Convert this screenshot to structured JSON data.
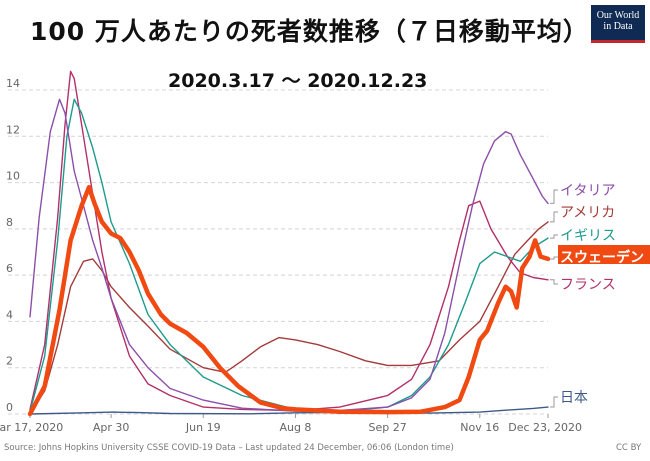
{
  "header": {
    "title": "100 万人あたりの死者数推移（７日移動平均）",
    "subtitle": "2020.3.17 ～ 2020.12.23"
  },
  "logo": {
    "line1": "Our World",
    "line2": "in Data"
  },
  "footer": {
    "source": "Source: Johns Hopkins University CSSE COVID-19 Data – Last updated 24 December, 06:06 (London time)",
    "license": "CC BY"
  },
  "colors": {
    "italy": "#8c4fa9",
    "usa": "#a33b3b",
    "uk": "#1d9b8d",
    "sweden": "#f04a12",
    "france": "#b3306a",
    "japan": "#3d5a87",
    "grid": "#d4d4d4",
    "axis_text": "#666666"
  },
  "chart_data": {
    "type": "line",
    "title": "100 万人あたりの死者数推移（７日移動平均）",
    "subtitle": "2020.3.17 ～ 2020.12.23",
    "xlabel": "",
    "ylabel": "",
    "x_range": [
      "2020-03-17",
      "2020-12-23"
    ],
    "ylim": [
      0,
      14
    ],
    "y_ticks": [
      0,
      2,
      4,
      6,
      8,
      10,
      12,
      14
    ],
    "x_ticks": [
      {
        "date": "2020-03-17",
        "label": "Mar 17, 2020"
      },
      {
        "date": "2020-04-30",
        "label": "Apr 30"
      },
      {
        "date": "2020-06-19",
        "label": "Jun 19"
      },
      {
        "date": "2020-08-08",
        "label": "Aug 8"
      },
      {
        "date": "2020-09-27",
        "label": "Sep 27"
      },
      {
        "date": "2020-11-16",
        "label": "Nov 16"
      },
      {
        "date": "2020-12-23",
        "label": "Dec 23, 2020"
      }
    ],
    "grid": true,
    "legend": "right, labels at line ends",
    "series": [
      {
        "key": "italy",
        "name": "イタリア",
        "points": [
          [
            "2020-03-17",
            4.2
          ],
          [
            "2020-03-22",
            8.5
          ],
          [
            "2020-03-28",
            12.2
          ],
          [
            "2020-04-02",
            13.6
          ],
          [
            "2020-04-05",
            13.0
          ],
          [
            "2020-04-10",
            10.5
          ],
          [
            "2020-04-15",
            9.0
          ],
          [
            "2020-04-20",
            7.5
          ],
          [
            "2020-04-25",
            6.3
          ],
          [
            "2020-04-30",
            5.0
          ],
          [
            "2020-05-10",
            3.0
          ],
          [
            "2020-05-20",
            2.0
          ],
          [
            "2020-06-01",
            1.1
          ],
          [
            "2020-06-19",
            0.6
          ],
          [
            "2020-07-10",
            0.25
          ],
          [
            "2020-08-08",
            0.12
          ],
          [
            "2020-09-01",
            0.15
          ],
          [
            "2020-09-27",
            0.3
          ],
          [
            "2020-10-10",
            0.7
          ],
          [
            "2020-10-20",
            1.5
          ],
          [
            "2020-10-28",
            3.5
          ],
          [
            "2020-11-05",
            6.5
          ],
          [
            "2020-11-12",
            9.0
          ],
          [
            "2020-11-18",
            10.8
          ],
          [
            "2020-11-24",
            11.8
          ],
          [
            "2020-11-30",
            12.2
          ],
          [
            "2020-12-03",
            12.1
          ],
          [
            "2020-12-08",
            11.2
          ],
          [
            "2020-12-14",
            10.3
          ],
          [
            "2020-12-20",
            9.4
          ],
          [
            "2020-12-23",
            9.1
          ]
        ]
      },
      {
        "key": "usa",
        "name": "アメリカ",
        "points": [
          [
            "2020-03-17",
            0.0
          ],
          [
            "2020-03-25",
            1.0
          ],
          [
            "2020-04-01",
            3.0
          ],
          [
            "2020-04-08",
            5.5
          ],
          [
            "2020-04-15",
            6.6
          ],
          [
            "2020-04-20",
            6.7
          ],
          [
            "2020-04-25",
            6.2
          ],
          [
            "2020-04-30",
            5.5
          ],
          [
            "2020-05-10",
            4.6
          ],
          [
            "2020-05-20",
            3.8
          ],
          [
            "2020-06-01",
            2.8
          ],
          [
            "2020-06-19",
            2.0
          ],
          [
            "2020-07-01",
            1.8
          ],
          [
            "2020-07-10",
            2.3
          ],
          [
            "2020-07-20",
            2.9
          ],
          [
            "2020-07-30",
            3.3
          ],
          [
            "2020-08-08",
            3.2
          ],
          [
            "2020-08-20",
            3.0
          ],
          [
            "2020-09-01",
            2.7
          ],
          [
            "2020-09-15",
            2.3
          ],
          [
            "2020-09-27",
            2.1
          ],
          [
            "2020-10-10",
            2.1
          ],
          [
            "2020-10-25",
            2.3
          ],
          [
            "2020-11-05",
            3.2
          ],
          [
            "2020-11-16",
            4.0
          ],
          [
            "2020-11-26",
            5.5
          ],
          [
            "2020-12-05",
            6.9
          ],
          [
            "2020-12-12",
            7.5
          ],
          [
            "2020-12-18",
            8.0
          ],
          [
            "2020-12-23",
            8.3
          ]
        ]
      },
      {
        "key": "uk",
        "name": "イギリス",
        "points": [
          [
            "2020-03-17",
            0.1
          ],
          [
            "2020-03-25",
            2.5
          ],
          [
            "2020-04-01",
            7.5
          ],
          [
            "2020-04-06",
            12.0
          ],
          [
            "2020-04-10",
            13.6
          ],
          [
            "2020-04-14",
            13.0
          ],
          [
            "2020-04-20",
            11.5
          ],
          [
            "2020-04-25",
            10.0
          ],
          [
            "2020-04-30",
            8.3
          ],
          [
            "2020-05-10",
            6.5
          ],
          [
            "2020-05-20",
            4.3
          ],
          [
            "2020-06-01",
            3.0
          ],
          [
            "2020-06-19",
            1.6
          ],
          [
            "2020-07-10",
            0.8
          ],
          [
            "2020-08-08",
            0.2
          ],
          [
            "2020-09-01",
            0.1
          ],
          [
            "2020-09-27",
            0.3
          ],
          [
            "2020-10-10",
            0.8
          ],
          [
            "2020-10-20",
            1.6
          ],
          [
            "2020-10-30",
            3.0
          ],
          [
            "2020-11-08",
            4.8
          ],
          [
            "2020-11-16",
            6.5
          ],
          [
            "2020-11-24",
            7.0
          ],
          [
            "2020-12-01",
            6.8
          ],
          [
            "2020-12-08",
            6.6
          ],
          [
            "2020-12-15",
            7.2
          ],
          [
            "2020-12-23",
            7.6
          ]
        ]
      },
      {
        "key": "sweden",
        "name": "スウェーデン",
        "points": [
          [
            "2020-03-17",
            0.0
          ],
          [
            "2020-03-25",
            1.2
          ],
          [
            "2020-04-02",
            4.5
          ],
          [
            "2020-04-08",
            7.5
          ],
          [
            "2020-04-14",
            9.0
          ],
          [
            "2020-04-18",
            9.8
          ],
          [
            "2020-04-21",
            9.1
          ],
          [
            "2020-04-25",
            8.3
          ],
          [
            "2020-04-30",
            7.8
          ],
          [
            "2020-05-05",
            7.6
          ],
          [
            "2020-05-10",
            7.0
          ],
          [
            "2020-05-15",
            6.2
          ],
          [
            "2020-05-20",
            5.2
          ],
          [
            "2020-05-27",
            4.3
          ],
          [
            "2020-06-01",
            3.9
          ],
          [
            "2020-06-10",
            3.5
          ],
          [
            "2020-06-19",
            2.9
          ],
          [
            "2020-06-28",
            2.0
          ],
          [
            "2020-07-08",
            1.2
          ],
          [
            "2020-07-20",
            0.5
          ],
          [
            "2020-08-01",
            0.25
          ],
          [
            "2020-08-08",
            0.2
          ],
          [
            "2020-08-20",
            0.15
          ],
          [
            "2020-09-01",
            0.1
          ],
          [
            "2020-09-27",
            0.08
          ],
          [
            "2020-10-15",
            0.1
          ],
          [
            "2020-10-28",
            0.3
          ],
          [
            "2020-11-05",
            0.6
          ],
          [
            "2020-11-10",
            1.6
          ],
          [
            "2020-11-16",
            3.2
          ],
          [
            "2020-11-20",
            3.6
          ],
          [
            "2020-11-26",
            4.8
          ],
          [
            "2020-11-30",
            5.5
          ],
          [
            "2020-12-03",
            5.3
          ],
          [
            "2020-12-06",
            4.6
          ],
          [
            "2020-12-09",
            6.3
          ],
          [
            "2020-12-13",
            6.8
          ],
          [
            "2020-12-16",
            7.5
          ],
          [
            "2020-12-19",
            6.8
          ],
          [
            "2020-12-23",
            6.7
          ]
        ]
      },
      {
        "key": "france",
        "name": "フランス",
        "points": [
          [
            "2020-03-17",
            0.2
          ],
          [
            "2020-03-25",
            3.0
          ],
          [
            "2020-04-01",
            8.5
          ],
          [
            "2020-04-05",
            12.5
          ],
          [
            "2020-04-08",
            14.8
          ],
          [
            "2020-04-10",
            14.5
          ],
          [
            "2020-04-15",
            12.0
          ],
          [
            "2020-04-20",
            9.5
          ],
          [
            "2020-04-25",
            7.0
          ],
          [
            "2020-04-30",
            5.0
          ],
          [
            "2020-05-10",
            2.5
          ],
          [
            "2020-05-20",
            1.3
          ],
          [
            "2020-06-01",
            0.8
          ],
          [
            "2020-06-19",
            0.3
          ],
          [
            "2020-07-10",
            0.2
          ],
          [
            "2020-08-08",
            0.15
          ],
          [
            "2020-09-01",
            0.3
          ],
          [
            "2020-09-27",
            0.8
          ],
          [
            "2020-10-10",
            1.5
          ],
          [
            "2020-10-20",
            3.0
          ],
          [
            "2020-10-30",
            5.5
          ],
          [
            "2020-11-05",
            7.5
          ],
          [
            "2020-11-10",
            9.0
          ],
          [
            "2020-11-16",
            9.2
          ],
          [
            "2020-11-22",
            8.0
          ],
          [
            "2020-12-01",
            6.8
          ],
          [
            "2020-12-08",
            6.1
          ],
          [
            "2020-12-15",
            5.9
          ],
          [
            "2020-12-23",
            5.8
          ]
        ]
      },
      {
        "key": "japan",
        "name": "日本",
        "points": [
          [
            "2020-03-17",
            0.0
          ],
          [
            "2020-04-15",
            0.05
          ],
          [
            "2020-05-01",
            0.08
          ],
          [
            "2020-05-15",
            0.06
          ],
          [
            "2020-06-01",
            0.02
          ],
          [
            "2020-07-15",
            0.01
          ],
          [
            "2020-08-08",
            0.05
          ],
          [
            "2020-09-01",
            0.07
          ],
          [
            "2020-09-27",
            0.05
          ],
          [
            "2020-10-20",
            0.04
          ],
          [
            "2020-11-16",
            0.08
          ],
          [
            "2020-12-01",
            0.17
          ],
          [
            "2020-12-15",
            0.24
          ],
          [
            "2020-12-23",
            0.3
          ]
        ]
      }
    ]
  }
}
